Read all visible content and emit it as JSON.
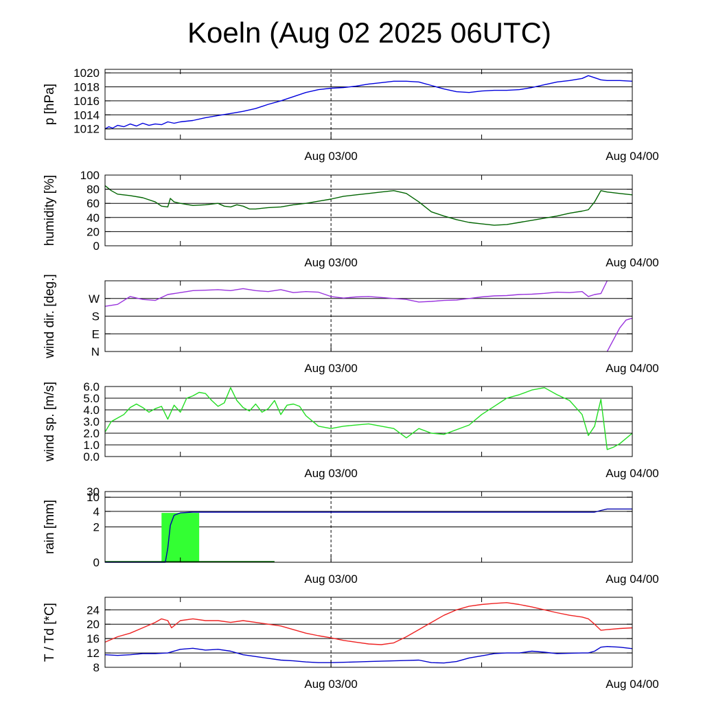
{
  "title": "Koeln (Aug 02 2025 06UTC)",
  "x_axis": {
    "start_hour": 0,
    "end_hour": 42,
    "major_ticks": [
      {
        "hour": 18,
        "label": "Aug 03/00"
      },
      {
        "hour": 42,
        "label": "Aug 04/00"
      }
    ],
    "minor_ticks": [
      6,
      30
    ],
    "dashed_line_hour": 18
  },
  "chart_data": [
    {
      "type": "line",
      "name": "pressure",
      "ylabel": "p [hPa]",
      "ylim": [
        1010.5,
        1020.5
      ],
      "scale": "linear",
      "yticks": [
        1012,
        1014,
        1016,
        1018,
        1020
      ],
      "ytick_labels": [
        "1012",
        "1014",
        "1016",
        "1018",
        "1020"
      ],
      "grid": [
        1012,
        1014,
        1016,
        1018,
        1020
      ],
      "color": "#0000dd",
      "series": [
        {
          "x": [
            0,
            0.3,
            0.6,
            1,
            1.5,
            2,
            2.5,
            3,
            3.5,
            4,
            4.5,
            5,
            5.5,
            6,
            7,
            8,
            9,
            10,
            11,
            12,
            13,
            14,
            15,
            16,
            17,
            18,
            19,
            20,
            21,
            22,
            23,
            24,
            25,
            26,
            27,
            28,
            29,
            30,
            31,
            32,
            33,
            34,
            35,
            36,
            37,
            38,
            38.5,
            39,
            39.5,
            40,
            41,
            42
          ],
          "y": [
            1012.0,
            1012.3,
            1012.1,
            1012.5,
            1012.3,
            1012.7,
            1012.4,
            1012.8,
            1012.5,
            1012.7,
            1012.6,
            1013.0,
            1012.8,
            1013.0,
            1013.2,
            1013.6,
            1013.9,
            1014.2,
            1014.5,
            1014.9,
            1015.5,
            1016.0,
            1016.6,
            1017.2,
            1017.6,
            1017.8,
            1017.9,
            1018.1,
            1018.4,
            1018.6,
            1018.8,
            1018.8,
            1018.7,
            1018.2,
            1017.7,
            1017.3,
            1017.2,
            1017.4,
            1017.5,
            1017.5,
            1017.6,
            1017.9,
            1018.3,
            1018.7,
            1018.9,
            1019.2,
            1019.6,
            1019.3,
            1019.0,
            1018.9,
            1018.9,
            1018.8
          ]
        }
      ]
    },
    {
      "type": "line",
      "name": "humidity",
      "ylabel": "humidity [%]",
      "ylim": [
        0,
        100
      ],
      "scale": "linear",
      "yticks": [
        0,
        20,
        40,
        60,
        80,
        100
      ],
      "ytick_labels": [
        "0",
        "20",
        "40",
        "60",
        "80",
        "100"
      ],
      "grid": [
        20,
        40,
        60,
        80
      ],
      "color": "#006400",
      "series": [
        {
          "x": [
            0,
            0.5,
            1,
            2,
            3,
            4,
            4.5,
            5,
            5.2,
            5.5,
            6,
            7,
            8,
            9,
            9.5,
            10,
            10.5,
            11,
            11.5,
            12,
            13,
            14,
            15,
            16,
            17,
            18,
            19,
            20,
            21,
            22,
            23,
            24,
            25,
            26,
            27,
            28,
            29,
            30,
            31,
            32,
            33,
            34,
            35,
            36,
            37,
            38,
            38.5,
            39,
            39.5,
            40,
            41,
            42
          ],
          "y": [
            85,
            78,
            73,
            71,
            68,
            62,
            56,
            55,
            67,
            62,
            60,
            57,
            58,
            60,
            56,
            55,
            58,
            56,
            52,
            52,
            54,
            55,
            58,
            60,
            63,
            66,
            70,
            72,
            74,
            76,
            78,
            74,
            62,
            48,
            42,
            37,
            33,
            31,
            29,
            30,
            33,
            36,
            39,
            42,
            46,
            49,
            51,
            62,
            78,
            76,
            74,
            72
          ]
        }
      ]
    },
    {
      "type": "line",
      "name": "wind direction",
      "ylabel": "wind dir. [deg.]",
      "ylim": [
        0,
        360
      ],
      "scale": "linear",
      "yticks": [
        0,
        90,
        180,
        270
      ],
      "ytick_labels": [
        "N",
        "E",
        "S",
        "W"
      ],
      "grid": [
        90,
        180,
        270
      ],
      "color": "#9933dd",
      "series": [
        {
          "x": [
            0,
            1,
            2,
            3,
            4,
            5,
            6,
            7,
            8,
            9,
            10,
            11,
            12,
            13,
            14,
            15,
            16,
            17,
            18,
            19,
            20,
            21,
            22,
            23,
            24,
            25,
            26,
            27,
            28,
            29,
            30,
            31,
            32,
            33,
            34,
            35,
            36,
            37,
            38,
            38.5,
            39,
            39.5,
            40
          ],
          "y": [
            230,
            240,
            280,
            265,
            260,
            290,
            300,
            310,
            312,
            315,
            310,
            320,
            310,
            305,
            315,
            300,
            305,
            302,
            280,
            272,
            278,
            280,
            275,
            270,
            265,
            252,
            255,
            260,
            262,
            270,
            278,
            283,
            285,
            290,
            292,
            296,
            302,
            300,
            305,
            280,
            290,
            295,
            360
          ]
        },
        {
          "x": [
            40,
            40.5,
            41,
            41.5,
            42
          ],
          "y": [
            0,
            60,
            120,
            160,
            170
          ]
        }
      ]
    },
    {
      "type": "line",
      "name": "wind speed",
      "ylabel": "wind sp. [m/s]",
      "ylim": [
        0,
        6
      ],
      "scale": "linear",
      "yticks": [
        0,
        1,
        2,
        3,
        4,
        5,
        6
      ],
      "ytick_labels": [
        "0.0",
        "1.0",
        "2.0",
        "3.0",
        "4.0",
        "5.0",
        "6.0"
      ],
      "grid": [
        1,
        2,
        3,
        4,
        5,
        6
      ],
      "color": "#22dd22",
      "series": [
        {
          "x": [
            0,
            0.5,
            1,
            1.5,
            2,
            2.5,
            3,
            3.5,
            4,
            4.5,
            5,
            5.5,
            6,
            6.5,
            7,
            7.5,
            8,
            8.5,
            9,
            9.5,
            10,
            10.5,
            11,
            11.5,
            12,
            12.5,
            13,
            13.5,
            14,
            14.5,
            15,
            15.5,
            16,
            17,
            18,
            19,
            20,
            21,
            22,
            23,
            24,
            25,
            26,
            27,
            28,
            29,
            30,
            31,
            32,
            33,
            34,
            35,
            36,
            37,
            38,
            38.5,
            39,
            39.5,
            40,
            40.5,
            41,
            42
          ],
          "y": [
            2.1,
            3.0,
            3.3,
            3.6,
            4.2,
            4.5,
            4.2,
            3.8,
            4.1,
            4.3,
            3.2,
            4.4,
            3.8,
            5.0,
            5.2,
            5.5,
            5.4,
            4.8,
            4.3,
            4.6,
            5.9,
            4.8,
            4.2,
            3.9,
            4.5,
            3.8,
            4.1,
            4.8,
            3.6,
            4.4,
            4.5,
            4.3,
            3.5,
            2.6,
            2.4,
            2.6,
            2.7,
            2.8,
            2.6,
            2.4,
            1.6,
            2.4,
            2.0,
            1.9,
            2.3,
            2.7,
            3.6,
            4.3,
            5.0,
            5.3,
            5.7,
            5.9,
            5.3,
            4.8,
            3.6,
            1.8,
            2.6,
            4.9,
            0.6,
            0.8,
            1.1,
            2.0
          ]
        }
      ]
    },
    {
      "type": "bar_line",
      "name": "rain",
      "ylabel": "rain [mm]",
      "ylim": [
        0,
        30
      ],
      "scale": "custom",
      "yticks": [
        0,
        2,
        4,
        10,
        30
      ],
      "ytick_labels": [
        "0",
        "2",
        "4",
        "10",
        "30"
      ],
      "grid": [
        2,
        4,
        10,
        30
      ],
      "bars": [
        {
          "x0": 4.5,
          "x1": 7.5,
          "value": 3.8,
          "color": "#33ff33"
        }
      ],
      "zero_line": {
        "x0": 0,
        "x1": 13.5,
        "color": "#006400"
      },
      "color": "#0000aa",
      "series": [
        {
          "x": [
            0,
            4.8,
            5.0,
            5.2,
            5.5,
            6,
            7,
            10,
            20,
            30,
            39,
            39.5,
            40,
            42
          ],
          "y": [
            0,
            0,
            0.8,
            2.2,
            3.5,
            3.8,
            3.9,
            3.9,
            3.9,
            3.9,
            3.9,
            4.4,
            5.0,
            5.0
          ]
        }
      ]
    },
    {
      "type": "line",
      "name": "temperature and dew point",
      "ylabel": "T / Td [*C]",
      "ylim": [
        8,
        27.5
      ],
      "scale": "linear",
      "yticks": [
        8,
        12,
        16,
        20,
        24
      ],
      "ytick_labels": [
        "8",
        "12",
        "16",
        "20",
        "24"
      ],
      "grid": [
        12,
        16,
        20,
        24
      ],
      "series": [
        {
          "color": "#ee2222",
          "x": [
            0,
            1,
            2,
            3,
            4,
            4.5,
            5,
            5.3,
            6,
            7,
            8,
            9,
            10,
            11,
            12,
            13,
            14,
            15,
            16,
            17,
            18,
            19,
            20,
            21,
            22,
            23,
            24,
            25,
            26,
            27,
            28,
            29,
            30,
            31,
            32,
            33,
            34,
            35,
            36,
            37,
            38,
            38.5,
            39,
            39.5,
            40,
            41,
            42
          ],
          "y": [
            15.0,
            16.5,
            17.5,
            19.0,
            20.5,
            21.5,
            21.0,
            19.0,
            21.0,
            21.5,
            21.0,
            21.0,
            20.5,
            21.0,
            20.5,
            20.0,
            19.5,
            18.5,
            17.5,
            16.8,
            16.2,
            15.5,
            15.0,
            14.5,
            14.3,
            14.8,
            16.5,
            18.5,
            20.5,
            22.5,
            24.0,
            25.0,
            25.5,
            25.8,
            26.0,
            25.5,
            24.8,
            24.0,
            23.2,
            22.5,
            22.0,
            21.5,
            20.0,
            18.3,
            18.5,
            18.8,
            19.0
          ]
        },
        {
          "color": "#0000cc",
          "x": [
            0,
            1,
            2,
            3,
            4,
            5,
            6,
            7,
            8,
            9,
            10,
            11,
            12,
            13,
            14,
            15,
            16,
            17,
            18,
            19,
            20,
            21,
            22,
            23,
            24,
            25,
            26,
            27,
            28,
            29,
            30,
            31,
            32,
            33,
            34,
            35,
            36,
            37,
            38,
            38.5,
            39,
            39.5,
            40,
            41,
            42
          ],
          "y": [
            11.5,
            11.3,
            11.5,
            11.8,
            11.8,
            12.0,
            13.0,
            13.3,
            12.8,
            13.0,
            12.5,
            11.5,
            11.0,
            10.5,
            10.0,
            9.8,
            9.5,
            9.3,
            9.3,
            9.4,
            9.5,
            9.6,
            9.7,
            9.8,
            9.9,
            10.0,
            9.3,
            9.2,
            9.6,
            10.6,
            11.2,
            11.8,
            12.0,
            12.0,
            12.5,
            12.2,
            11.8,
            11.9,
            12.0,
            12.0,
            12.5,
            13.6,
            13.8,
            13.6,
            13.2
          ]
        }
      ]
    }
  ]
}
